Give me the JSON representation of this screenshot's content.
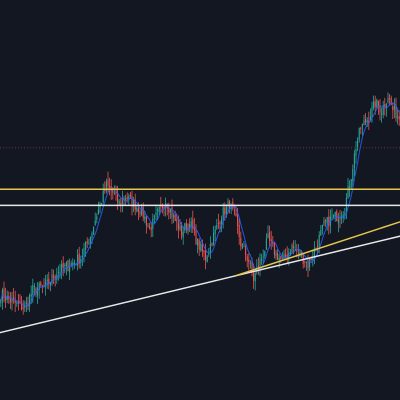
{
  "chart_data": {
    "type": "candlestick",
    "theme": {
      "background": "#131722",
      "bull": "#26a69a",
      "bear": "#ef5350",
      "ma_color": "#2962ff"
    },
    "candle_count": 250,
    "ylim": [
      0,
      100
    ],
    "price_path": [
      [
        0,
        24
      ],
      [
        6,
        22
      ],
      [
        10,
        21
      ],
      [
        15,
        20
      ],
      [
        20,
        25
      ],
      [
        28,
        26
      ],
      [
        35,
        30
      ],
      [
        43,
        32
      ],
      [
        50,
        34
      ],
      [
        56,
        40
      ],
      [
        60,
        46
      ],
      [
        63,
        50
      ],
      [
        66,
        54
      ],
      [
        70,
        52
      ],
      [
        74,
        49
      ],
      [
        78,
        51
      ],
      [
        83,
        49
      ],
      [
        88,
        47
      ],
      [
        93,
        42
      ],
      [
        98,
        46
      ],
      [
        103,
        50
      ],
      [
        108,
        45
      ],
      [
        113,
        41
      ],
      [
        118,
        44
      ],
      [
        123,
        38
      ],
      [
        128,
        34
      ],
      [
        133,
        40
      ],
      [
        138,
        46
      ],
      [
        143,
        49
      ],
      [
        147,
        44
      ],
      [
        150,
        38
      ],
      [
        155,
        33
      ],
      [
        158,
        28
      ],
      [
        163,
        34
      ],
      [
        167,
        39
      ],
      [
        172,
        35
      ],
      [
        176,
        33
      ],
      [
        182,
        37
      ],
      [
        187,
        35
      ],
      [
        192,
        32
      ],
      [
        197,
        37
      ],
      [
        202,
        43
      ],
      [
        207,
        45
      ],
      [
        212,
        46
      ],
      [
        215,
        48
      ],
      [
        219,
        57
      ],
      [
        222,
        65
      ],
      [
        225,
        70
      ],
      [
        230,
        73
      ],
      [
        234,
        77
      ],
      [
        238,
        75
      ],
      [
        242,
        79
      ],
      [
        245,
        75
      ],
      [
        249,
        73
      ]
    ],
    "levels": [
      {
        "name": "upper-dotted-level",
        "value": 64.5,
        "color": "#7a3a3a",
        "style": "dotted"
      },
      {
        "name": "yellow-resistance",
        "value": 53,
        "color": "#e6c84a",
        "style": "solid"
      },
      {
        "name": "white-resistance",
        "value": 48.5,
        "color": "#e8e8e8",
        "style": "solid"
      }
    ],
    "trendlines": [
      {
        "name": "white-trendline",
        "from": [
          -2,
          13
        ],
        "to": [
          250,
          40
        ],
        "color": "#e8e8e8"
      },
      {
        "name": "yellow-trendline",
        "from": [
          147,
          29
        ],
        "to": [
          250,
          44
        ],
        "color": "#e6c84a"
      }
    ]
  }
}
